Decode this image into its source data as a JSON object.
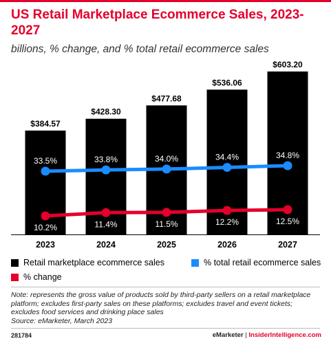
{
  "header": {
    "title": "US Retail Marketplace Ecommerce Sales, 2023-2027",
    "subtitle": "billions, % change, and % total retail ecommerce sales"
  },
  "colors": {
    "accent": "#e4002b",
    "bar": "#000000",
    "share_line": "#1a8cff",
    "change_line": "#e4002b"
  },
  "chart_data": {
    "type": "bar",
    "categories": [
      "2023",
      "2024",
      "2025",
      "2026",
      "2027"
    ],
    "series": [
      {
        "name": "Retail marketplace ecommerce sales",
        "type": "bar",
        "values": [
          384.57,
          428.3,
          477.68,
          536.06,
          603.2
        ],
        "labels": [
          "$384.57",
          "$428.30",
          "$477.68",
          "$536.06",
          "$603.20"
        ]
      },
      {
        "name": "% total retail ecommerce sales",
        "type": "line",
        "values": [
          33.5,
          33.8,
          34.0,
          34.4,
          34.8
        ],
        "labels": [
          "33.5%",
          "33.8%",
          "34.0%",
          "34.4%",
          "34.8%"
        ]
      },
      {
        "name": "% change",
        "type": "line",
        "values": [
          10.2,
          11.4,
          11.5,
          12.2,
          12.5
        ],
        "labels": [
          "10.2%",
          "11.4%",
          "11.5%",
          "12.2%",
          "12.5%"
        ]
      }
    ],
    "legend_position": "bottom",
    "grid": false
  },
  "legend": [
    {
      "label": "Retail marketplace ecommerce sales",
      "color": "#000000"
    },
    {
      "label": "% total retail ecommerce sales",
      "color": "#1a8cff"
    },
    {
      "label": "% change",
      "color": "#e4002b"
    }
  ],
  "note": "Note: represents the gross value of products sold by third-party sellers on a retail marketplace platform; excludes first-party sales on these platforms; excludes travel and event tickets; excludes food services and drinking place sales",
  "source": "Source: eMarketer, March 2023",
  "footer": {
    "chart_id": "281784",
    "brand_a": "eMarketer",
    "separator": "|",
    "brand_b": "InsiderIntelligence.com"
  }
}
